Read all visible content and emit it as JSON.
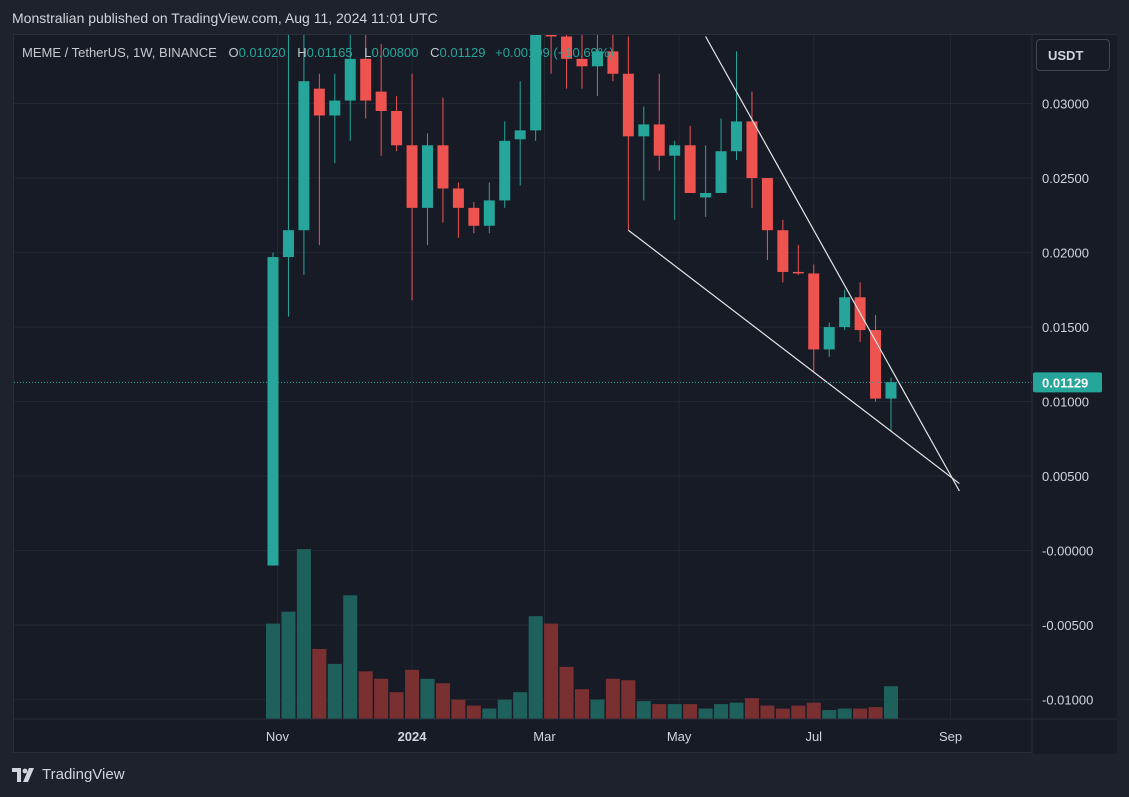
{
  "header": {
    "published_line": "Monstralian published on TradingView.com, Aug 11, 2024 11:01 UTC"
  },
  "legend": {
    "symbol": "MEME / TetherUS, 1W, BINANCE",
    "o_label": "O",
    "o_value": "0.01020",
    "h_label": "H",
    "h_value": "0.01165",
    "l_label": "L",
    "l_value": "0.00800",
    "c_label": "C",
    "c_value": "0.01129",
    "change": "+0.00109 (+10.69%)"
  },
  "currency_button": "USDT",
  "footer": {
    "brand": "TradingView"
  },
  "colors": {
    "up": "#26a69a",
    "down": "#ef5350",
    "up_volume": "#1e615c",
    "down_volume": "#7a2f30",
    "background": "#171b26",
    "grid": "#242832"
  },
  "chart_data": {
    "type": "candlestick",
    "symbol": "MEME / TetherUS",
    "interval": "1W",
    "exchange": "BINANCE",
    "y_axis_ticks": [
      "0.03000",
      "0.02500",
      "0.02000",
      "0.01500",
      "0.01000",
      "0.00500",
      "-0.00000",
      "-0.00500",
      "-0.01000"
    ],
    "ylim": [
      -0.0113,
      0.0346
    ],
    "x_axis_ticks": [
      {
        "label": "Nov",
        "date": "2023-11-01"
      },
      {
        "label": "2024",
        "date": "2024-01-01"
      },
      {
        "label": "Mar",
        "date": "2024-03-01"
      },
      {
        "label": "May",
        "date": "2024-05-01"
      },
      {
        "label": "Jul",
        "date": "2024-07-01"
      },
      {
        "label": "Sep",
        "date": "2024-09-01"
      }
    ],
    "last_price": "0.01129",
    "grid": true,
    "candles": [
      {
        "date": "2023-10-30",
        "o": -0.001,
        "h": 0.02,
        "l": -0.001,
        "c": 0.0197
      },
      {
        "date": "2023-11-06",
        "o": 0.0197,
        "h": 0.035,
        "l": 0.0157,
        "c": 0.0215
      },
      {
        "date": "2023-11-13",
        "o": 0.0215,
        "h": 0.035,
        "l": 0.0185,
        "c": 0.0315
      },
      {
        "date": "2023-11-20",
        "o": 0.031,
        "h": 0.032,
        "l": 0.0205,
        "c": 0.0292
      },
      {
        "date": "2023-11-27",
        "o": 0.0292,
        "h": 0.032,
        "l": 0.026,
        "c": 0.0302
      },
      {
        "date": "2023-12-04",
        "o": 0.0302,
        "h": 0.0355,
        "l": 0.0275,
        "c": 0.033
      },
      {
        "date": "2023-12-11",
        "o": 0.033,
        "h": 0.0355,
        "l": 0.029,
        "c": 0.0302
      },
      {
        "date": "2023-12-18",
        "o": 0.0308,
        "h": 0.034,
        "l": 0.0265,
        "c": 0.0295
      },
      {
        "date": "2023-12-25",
        "o": 0.0295,
        "h": 0.0305,
        "l": 0.0268,
        "c": 0.0272
      },
      {
        "date": "2024-01-01",
        "o": 0.0272,
        "h": 0.032,
        "l": 0.0168,
        "c": 0.023
      },
      {
        "date": "2024-01-08",
        "o": 0.023,
        "h": 0.028,
        "l": 0.0205,
        "c": 0.0272
      },
      {
        "date": "2024-01-15",
        "o": 0.0272,
        "h": 0.0304,
        "l": 0.022,
        "c": 0.0243
      },
      {
        "date": "2024-01-22",
        "o": 0.0243,
        "h": 0.0247,
        "l": 0.021,
        "c": 0.023
      },
      {
        "date": "2024-01-29",
        "o": 0.023,
        "h": 0.0234,
        "l": 0.0213,
        "c": 0.0218
      },
      {
        "date": "2024-02-05",
        "o": 0.0218,
        "h": 0.0247,
        "l": 0.0213,
        "c": 0.0235
      },
      {
        "date": "2024-02-12",
        "o": 0.0235,
        "h": 0.0288,
        "l": 0.023,
        "c": 0.0275
      },
      {
        "date": "2024-02-19",
        "o": 0.0276,
        "h": 0.0315,
        "l": 0.0245,
        "c": 0.0282
      },
      {
        "date": "2024-02-26",
        "o": 0.0282,
        "h": 0.036,
        "l": 0.0275,
        "c": 0.035
      },
      {
        "date": "2024-03-04",
        "o": 0.035,
        "h": 0.0365,
        "l": 0.032,
        "c": 0.0345
      },
      {
        "date": "2024-03-11",
        "o": 0.0345,
        "h": 0.036,
        "l": 0.031,
        "c": 0.033
      },
      {
        "date": "2024-03-18",
        "o": 0.033,
        "h": 0.0355,
        "l": 0.031,
        "c": 0.0325
      },
      {
        "date": "2024-03-25",
        "o": 0.0325,
        "h": 0.036,
        "l": 0.0305,
        "c": 0.0335
      },
      {
        "date": "2024-04-01",
        "o": 0.0335,
        "h": 0.036,
        "l": 0.0315,
        "c": 0.032
      },
      {
        "date": "2024-04-08",
        "o": 0.032,
        "h": 0.0345,
        "l": 0.0215,
        "c": 0.0278
      },
      {
        "date": "2024-04-15",
        "o": 0.0278,
        "h": 0.0298,
        "l": 0.0235,
        "c": 0.0286
      },
      {
        "date": "2024-04-22",
        "o": 0.0286,
        "h": 0.032,
        "l": 0.0255,
        "c": 0.0265
      },
      {
        "date": "2024-04-29",
        "o": 0.0265,
        "h": 0.0275,
        "l": 0.0222,
        "c": 0.0272
      },
      {
        "date": "2024-05-06",
        "o": 0.0272,
        "h": 0.0285,
        "l": 0.024,
        "c": 0.024
      },
      {
        "date": "2024-05-13",
        "o": 0.0237,
        "h": 0.0272,
        "l": 0.0224,
        "c": 0.024
      },
      {
        "date": "2024-05-20",
        "o": 0.024,
        "h": 0.029,
        "l": 0.024,
        "c": 0.0268
      },
      {
        "date": "2024-05-27",
        "o": 0.0268,
        "h": 0.0335,
        "l": 0.0262,
        "c": 0.0288
      },
      {
        "date": "2024-06-03",
        "o": 0.0288,
        "h": 0.0308,
        "l": 0.023,
        "c": 0.025
      },
      {
        "date": "2024-06-10",
        "o": 0.025,
        "h": 0.025,
        "l": 0.0195,
        "c": 0.0215
      },
      {
        "date": "2024-06-17",
        "o": 0.0215,
        "h": 0.0222,
        "l": 0.018,
        "c": 0.0187
      },
      {
        "date": "2024-06-24",
        "o": 0.0187,
        "h": 0.0205,
        "l": 0.0185,
        "c": 0.0186
      },
      {
        "date": "2024-07-01",
        "o": 0.0186,
        "h": 0.0192,
        "l": 0.012,
        "c": 0.0135
      },
      {
        "date": "2024-07-08",
        "o": 0.0135,
        "h": 0.0153,
        "l": 0.013,
        "c": 0.015
      },
      {
        "date": "2024-07-15",
        "o": 0.015,
        "h": 0.0175,
        "l": 0.0148,
        "c": 0.017
      },
      {
        "date": "2024-07-22",
        "o": 0.017,
        "h": 0.018,
        "l": 0.014,
        "c": 0.0148
      },
      {
        "date": "2024-07-29",
        "o": 0.0148,
        "h": 0.0158,
        "l": 0.01,
        "c": 0.0102
      },
      {
        "date": "2024-08-05",
        "o": 0.0102,
        "h": 0.0116,
        "l": 0.008,
        "c": 0.0113
      }
    ],
    "volume": [
      {
        "date": "2023-10-30",
        "v": -0.0049
      },
      {
        "date": "2023-11-06",
        "v": -0.0041
      },
      {
        "date": "2023-11-13",
        "v": 0.0001
      },
      {
        "date": "2023-11-20",
        "v": -0.0066
      },
      {
        "date": "2023-11-27",
        "v": -0.0076
      },
      {
        "date": "2023-12-04",
        "v": -0.003
      },
      {
        "date": "2023-12-11",
        "v": -0.0081
      },
      {
        "date": "2023-12-18",
        "v": -0.0086
      },
      {
        "date": "2023-12-25",
        "v": -0.0095
      },
      {
        "date": "2024-01-01",
        "v": -0.008
      },
      {
        "date": "2024-01-08",
        "v": -0.0086
      },
      {
        "date": "2024-01-15",
        "v": -0.0089
      },
      {
        "date": "2024-01-22",
        "v": -0.01
      },
      {
        "date": "2024-01-29",
        "v": -0.0104
      },
      {
        "date": "2024-02-05",
        "v": -0.0106
      },
      {
        "date": "2024-02-12",
        "v": -0.01
      },
      {
        "date": "2024-02-19",
        "v": -0.0095
      },
      {
        "date": "2024-02-26",
        "v": -0.0044
      },
      {
        "date": "2024-03-04",
        "v": -0.0049
      },
      {
        "date": "2024-03-11",
        "v": -0.0078
      },
      {
        "date": "2024-03-18",
        "v": -0.0093
      },
      {
        "date": "2024-03-25",
        "v": -0.01
      },
      {
        "date": "2024-04-01",
        "v": -0.0086
      },
      {
        "date": "2024-04-08",
        "v": -0.0087
      },
      {
        "date": "2024-04-15",
        "v": -0.0101
      },
      {
        "date": "2024-04-22",
        "v": -0.0103
      },
      {
        "date": "2024-04-29",
        "v": -0.0103
      },
      {
        "date": "2024-05-06",
        "v": -0.0103
      },
      {
        "date": "2024-05-13",
        "v": -0.0106
      },
      {
        "date": "2024-05-20",
        "v": -0.0103
      },
      {
        "date": "2024-05-27",
        "v": -0.0102
      },
      {
        "date": "2024-06-03",
        "v": -0.0099
      },
      {
        "date": "2024-06-10",
        "v": -0.0104
      },
      {
        "date": "2024-06-17",
        "v": -0.0106
      },
      {
        "date": "2024-06-24",
        "v": -0.0104
      },
      {
        "date": "2024-07-01",
        "v": -0.0102
      },
      {
        "date": "2024-07-08",
        "v": -0.0107
      },
      {
        "date": "2024-07-15",
        "v": -0.0106
      },
      {
        "date": "2024-07-22",
        "v": -0.0106
      },
      {
        "date": "2024-07-29",
        "v": -0.0105
      },
      {
        "date": "2024-08-05",
        "v": -0.0091
      }
    ],
    "trendlines": [
      {
        "name": "upper-trendline",
        "from": {
          "date": "2024-05-13",
          "price": 0.0345
        },
        "to": {
          "date": "2024-09-05",
          "price": 0.004
        }
      },
      {
        "name": "lower-trendline",
        "from": {
          "date": "2024-04-08",
          "price": 0.0215
        },
        "to": {
          "date": "2024-09-05",
          "price": 0.0045
        }
      }
    ]
  }
}
